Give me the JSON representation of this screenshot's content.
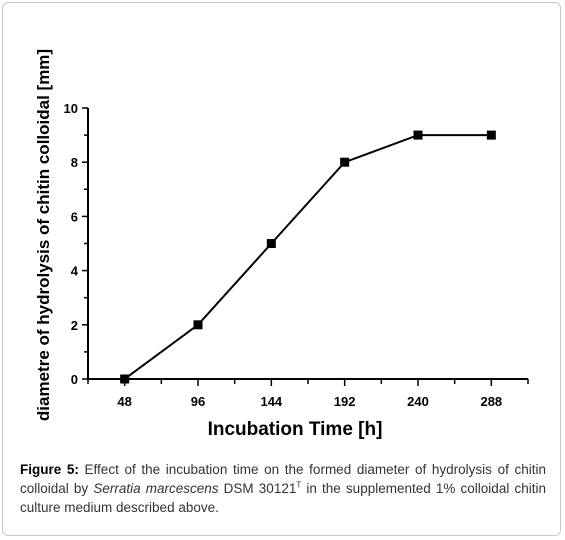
{
  "chart_data": {
    "type": "line",
    "x": [
      48,
      96,
      144,
      192,
      240,
      288
    ],
    "series": [
      {
        "values": [
          0,
          2,
          5,
          8,
          9,
          9
        ],
        "marker": "square",
        "color": "#000000"
      }
    ],
    "xticks": [
      "48",
      "96",
      "144",
      "192",
      "240",
      "288"
    ],
    "yticks": [
      "0",
      "2",
      "4",
      "6",
      "8",
      "10"
    ],
    "xlabel": "Incubation Time [h]",
    "ylabel": "diametre of hydrolysis of chitin colloidal [mm]",
    "xlim": [
      24,
      312
    ],
    "ylim": [
      0,
      10
    ],
    "grid": false,
    "legend": "none"
  },
  "caption": {
    "label": "Figure 5:",
    "text_before": " Effect of the incubation time on the formed diameter of hydrolysis of chitin colloidal by ",
    "species": "Serratia marcescens",
    "strain": " DSM 30121",
    "superscript": "T",
    "text_after": " in the supplemented 1% colloidal chitin culture medium described above."
  }
}
